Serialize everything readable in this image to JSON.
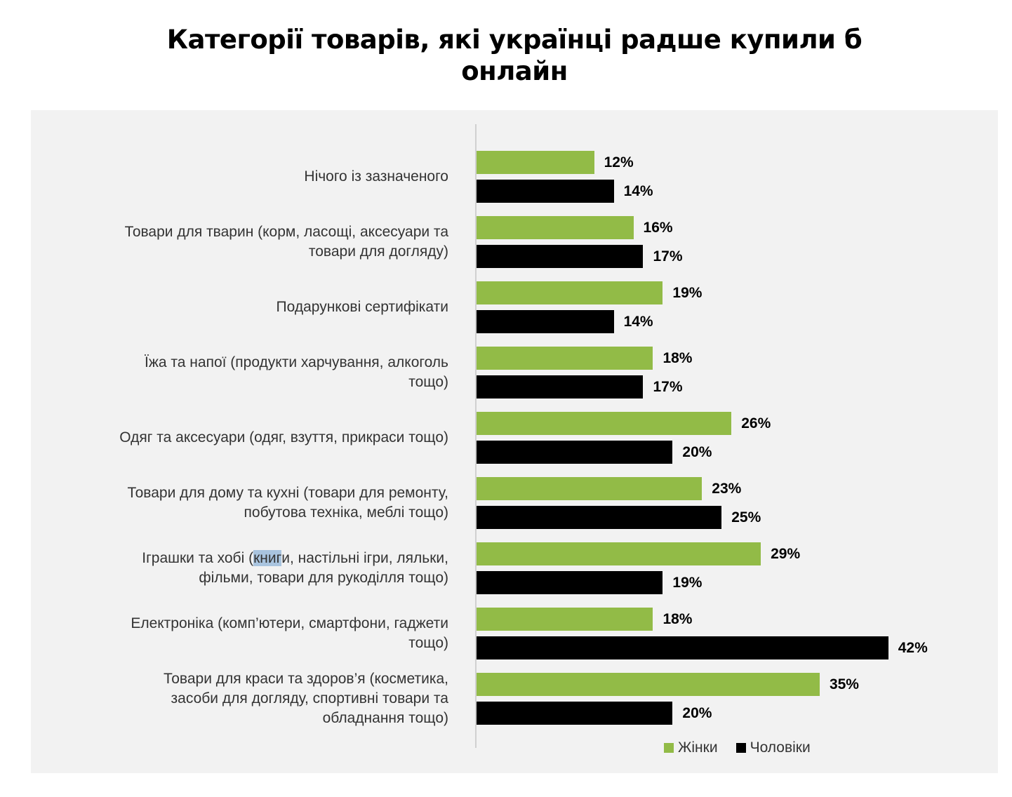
{
  "chart_data": {
    "type": "bar",
    "orientation": "horizontal",
    "title": "Категорії товарів, які українці радше купили б онлайн",
    "title_lines": [
      "Категорії товарів, які українці радше купили б",
      "онлайн"
    ],
    "categories": [
      {
        "lines": [
          "Нічого із зазначеного"
        ]
      },
      {
        "lines": [
          "Товари для тварин (корм, ласощі, аксесуари та",
          "товари для догляду)"
        ]
      },
      {
        "lines": [
          "Подарункові сертифікати"
        ]
      },
      {
        "lines": [
          "Їжа та напої (продукти харчування, алкоголь",
          "тощо)"
        ]
      },
      {
        "lines": [
          "Одяг та аксесуари (одяг, взуття, прикраси тощо)"
        ]
      },
      {
        "lines": [
          "Товари для дому та кухні (товари для ремонту,",
          "побутова техніка, меблі тощо)"
        ]
      },
      {
        "lines": [
          "Іграшки та хобі (книги, настільні ігри, ляльки,",
          "фільми, товари для рукоділля тощо)"
        ],
        "highlight": "книг"
      },
      {
        "lines": [
          "Електроніка (комп’ютери, смартфони, гаджети",
          "тощо)"
        ]
      },
      {
        "lines": [
          "Товари для краси та здоров’я (косметика,",
          "засоби для догляду, спортивні товари та",
          "обладнання тощо)"
        ]
      }
    ],
    "series": [
      {
        "name": "Жінки",
        "color": "#92bb47",
        "values": [
          12,
          16,
          19,
          18,
          26,
          23,
          29,
          18,
          35
        ]
      },
      {
        "name": "Чоловіки",
        "color": "#000000",
        "values": [
          14,
          17,
          14,
          17,
          20,
          25,
          19,
          42,
          20
        ]
      }
    ],
    "value_suffix": "%",
    "xlim": [
      0,
      42
    ],
    "legend": "bottom-right",
    "grid": false
  }
}
